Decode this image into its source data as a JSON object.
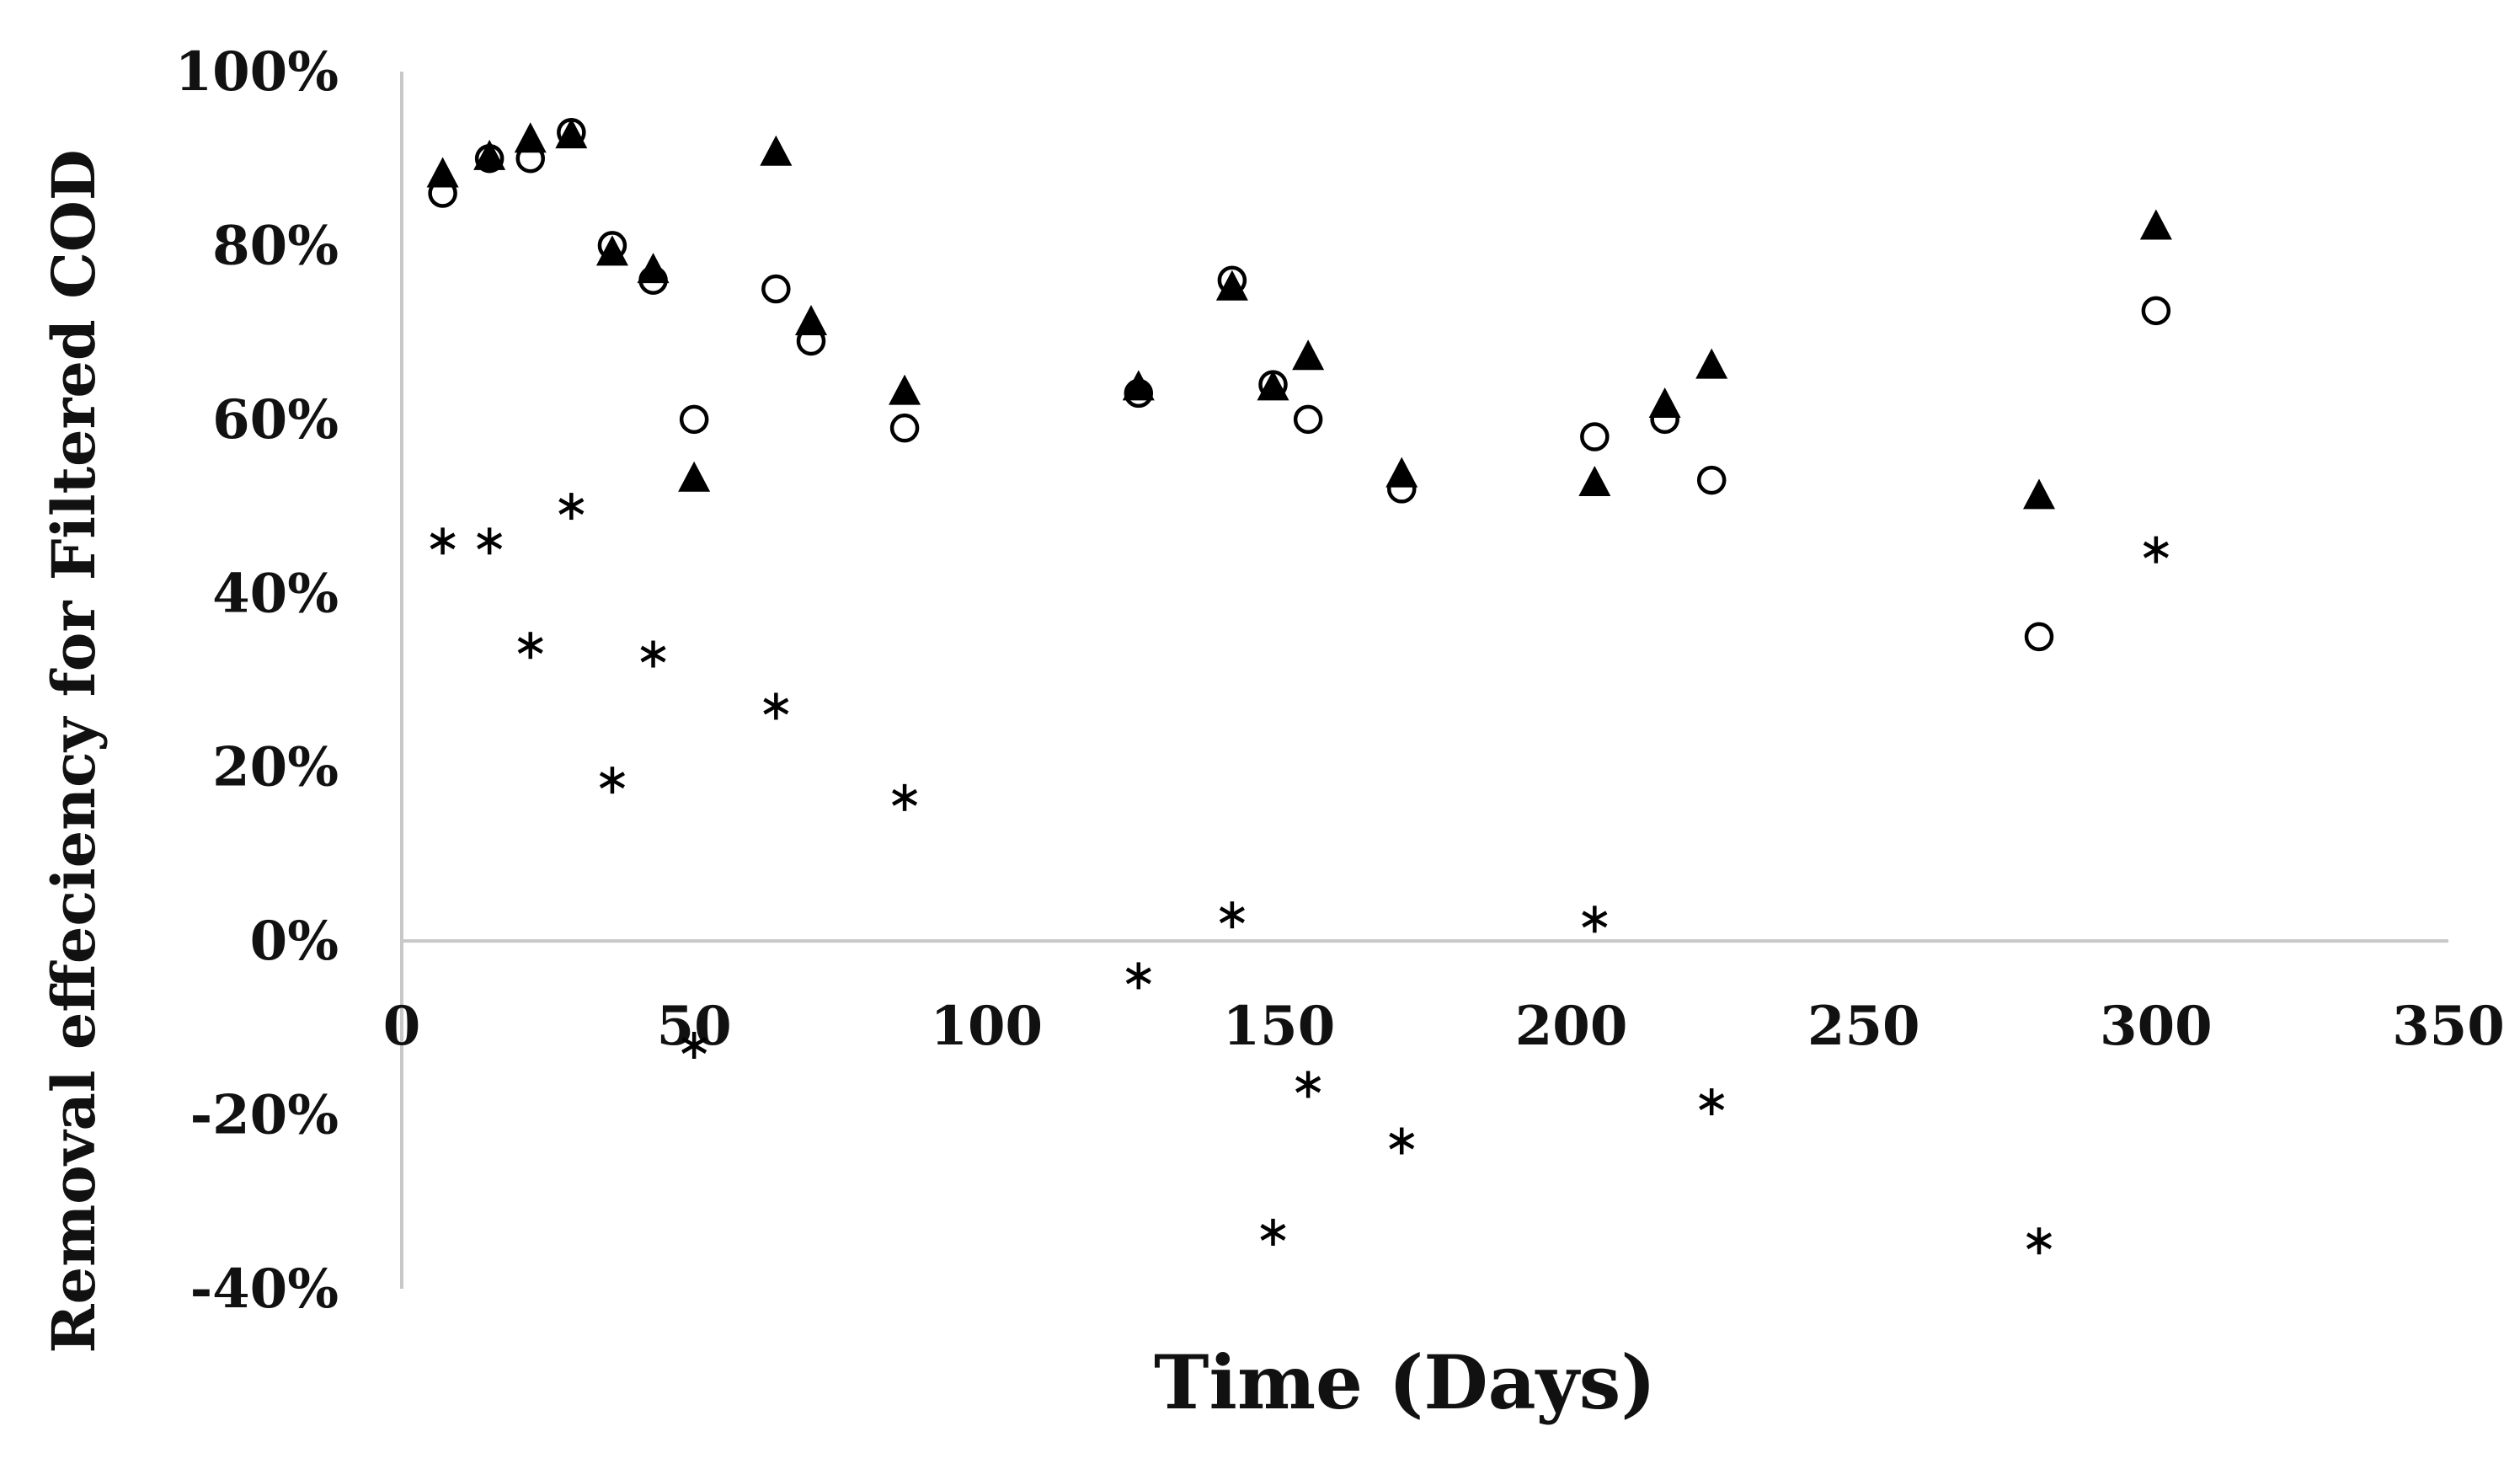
{
  "chart_data": {
    "type": "scatter",
    "title": "",
    "xlabel": "Time (Days)",
    "ylabel": "Removal effeciency for Filtered COD",
    "xlim": [
      0,
      350
    ],
    "ylim": [
      -0.4,
      1.0
    ],
    "x_ticks": [
      0,
      50,
      100,
      150,
      200,
      250,
      300,
      350
    ],
    "x_tick_labels": [
      "0",
      "50",
      "100",
      "150",
      "200",
      "250",
      "300",
      "350"
    ],
    "y_ticks": [
      -0.4,
      -0.2,
      0.0,
      0.2,
      0.4,
      0.6,
      0.8,
      1.0
    ],
    "y_tick_labels": [
      "-40%",
      "-20%",
      "0%",
      "20%",
      "40%",
      "60%",
      "80%",
      "100%"
    ],
    "grid": false,
    "legend": "none",
    "series": [
      {
        "marker": "triangle",
        "color": "#000000",
        "points": [
          {
            "x": 7,
            "y": 0.88
          },
          {
            "x": 15,
            "y": 0.9
          },
          {
            "x": 22,
            "y": 0.92
          },
          {
            "x": 29,
            "y": 0.925
          },
          {
            "x": 36,
            "y": 0.79
          },
          {
            "x": 43,
            "y": 0.77
          },
          {
            "x": 50,
            "y": 0.53
          },
          {
            "x": 64,
            "y": 0.905
          },
          {
            "x": 70,
            "y": 0.71
          },
          {
            "x": 86,
            "y": 0.63
          },
          {
            "x": 126,
            "y": 0.635
          },
          {
            "x": 142,
            "y": 0.75
          },
          {
            "x": 149,
            "y": 0.635
          },
          {
            "x": 155,
            "y": 0.67
          },
          {
            "x": 171,
            "y": 0.535
          },
          {
            "x": 204,
            "y": 0.525
          },
          {
            "x": 216,
            "y": 0.615
          },
          {
            "x": 224,
            "y": 0.66
          },
          {
            "x": 280,
            "y": 0.51
          },
          {
            "x": 300,
            "y": 0.82
          }
        ]
      },
      {
        "marker": "circle-open",
        "color": "#000000",
        "points": [
          {
            "x": 7,
            "y": 0.86
          },
          {
            "x": 15,
            "y": 0.9
          },
          {
            "x": 22,
            "y": 0.9
          },
          {
            "x": 29,
            "y": 0.93
          },
          {
            "x": 36,
            "y": 0.8
          },
          {
            "x": 43,
            "y": 0.76
          },
          {
            "x": 50,
            "y": 0.6
          },
          {
            "x": 64,
            "y": 0.75
          },
          {
            "x": 70,
            "y": 0.69
          },
          {
            "x": 86,
            "y": 0.59
          },
          {
            "x": 126,
            "y": 0.63
          },
          {
            "x": 142,
            "y": 0.76
          },
          {
            "x": 149,
            "y": 0.64
          },
          {
            "x": 155,
            "y": 0.6
          },
          {
            "x": 171,
            "y": 0.52
          },
          {
            "x": 204,
            "y": 0.58
          },
          {
            "x": 216,
            "y": 0.6
          },
          {
            "x": 224,
            "y": 0.53
          },
          {
            "x": 280,
            "y": 0.35
          },
          {
            "x": 300,
            "y": 0.725
          }
        ]
      },
      {
        "marker": "asterisk",
        "color": "#000000",
        "points": [
          {
            "x": 7,
            "y": 0.46
          },
          {
            "x": 15,
            "y": 0.46
          },
          {
            "x": 22,
            "y": 0.34
          },
          {
            "x": 29,
            "y": 0.5
          },
          {
            "x": 36,
            "y": 0.185
          },
          {
            "x": 43,
            "y": 0.33
          },
          {
            "x": 50,
            "y": -0.12
          },
          {
            "x": 64,
            "y": 0.27
          },
          {
            "x": 86,
            "y": 0.165
          },
          {
            "x": 126,
            "y": -0.04
          },
          {
            "x": 142,
            "y": 0.03
          },
          {
            "x": 149,
            "y": -0.335
          },
          {
            "x": 155,
            "y": -0.165
          },
          {
            "x": 171,
            "y": -0.23
          },
          {
            "x": 204,
            "y": 0.025
          },
          {
            "x": 224,
            "y": -0.185
          },
          {
            "x": 280,
            "y": -0.345
          },
          {
            "x": 300,
            "y": 0.45
          }
        ]
      }
    ]
  }
}
